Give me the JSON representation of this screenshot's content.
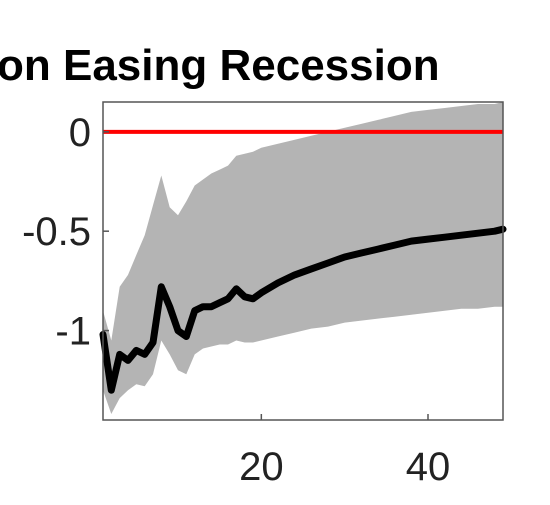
{
  "chart_data": {
    "type": "line",
    "title": "on Easing Recession",
    "xlabel": "",
    "ylabel": "",
    "xlim": [
      1,
      49
    ],
    "ylim": [
      -1.45,
      0.15
    ],
    "grid": false,
    "x_ticks": [
      20,
      40
    ],
    "y_ticks": [
      0,
      -0.5,
      -1
    ],
    "x_tick_labels": [
      "20",
      "40"
    ],
    "y_tick_labels": [
      "0",
      "-0.5",
      "-1"
    ],
    "reference_line": {
      "y": 0,
      "color": "#ff0000"
    },
    "colors": {
      "band": "#b4b4b4",
      "line": "#000000",
      "reference": "#ff0000"
    },
    "series": [
      {
        "x": [
          1,
          2,
          3,
          4,
          5,
          6,
          7,
          8,
          9,
          10,
          11,
          12,
          13,
          14,
          15,
          16,
          17,
          18,
          19,
          20,
          22,
          24,
          26,
          28,
          30,
          32,
          34,
          36,
          38,
          40,
          42,
          44,
          46,
          48,
          49
        ],
        "values": [
          -1.02,
          -1.3,
          -1.12,
          -1.15,
          -1.1,
          -1.12,
          -1.06,
          -0.78,
          -0.88,
          -1.0,
          -1.03,
          -0.9,
          -0.88,
          -0.88,
          -0.86,
          -0.84,
          -0.79,
          -0.83,
          -0.84,
          -0.81,
          -0.76,
          -0.72,
          -0.69,
          -0.66,
          -0.63,
          -0.61,
          -0.59,
          -0.57,
          -0.55,
          -0.54,
          -0.53,
          -0.52,
          -0.51,
          -0.5,
          -0.49
        ]
      },
      {
        "x": [
          1,
          2,
          3,
          4,
          5,
          6,
          7,
          8,
          9,
          10,
          11,
          12,
          13,
          14,
          15,
          16,
          17,
          18,
          19,
          20,
          22,
          24,
          26,
          28,
          30,
          32,
          34,
          36,
          38,
          40,
          42,
          44,
          46,
          48,
          49
        ],
        "lower": [
          -1.3,
          -1.42,
          -1.34,
          -1.3,
          -1.27,
          -1.28,
          -1.22,
          -1.05,
          -1.12,
          -1.2,
          -1.22,
          -1.12,
          -1.09,
          -1.08,
          -1.07,
          -1.07,
          -1.05,
          -1.06,
          -1.06,
          -1.05,
          -1.03,
          -1.01,
          -0.99,
          -0.98,
          -0.96,
          -0.95,
          -0.94,
          -0.93,
          -0.92,
          -0.91,
          -0.9,
          -0.89,
          -0.89,
          -0.88,
          -0.88
        ],
        "upper": [
          -0.9,
          -1.05,
          -0.78,
          -0.72,
          -0.62,
          -0.52,
          -0.37,
          -0.22,
          -0.38,
          -0.42,
          -0.35,
          -0.27,
          -0.24,
          -0.21,
          -0.19,
          -0.17,
          -0.12,
          -0.11,
          -0.1,
          -0.08,
          -0.06,
          -0.04,
          -0.02,
          0.0,
          0.02,
          0.04,
          0.06,
          0.08,
          0.1,
          0.11,
          0.12,
          0.13,
          0.14,
          0.14,
          0.15
        ]
      }
    ]
  }
}
